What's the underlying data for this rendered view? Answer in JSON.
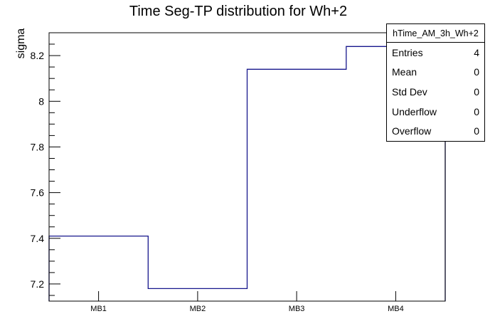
{
  "title": "Time Seg-TP distribution for Wh+2",
  "stats": {
    "header": "hTime_AM_3h_Wh+2",
    "rows": [
      {
        "label": "Entries",
        "value": "4"
      },
      {
        "label": "Mean",
        "value": "0"
      },
      {
        "label": "Std Dev",
        "value": "0"
      },
      {
        "label": "Underflow",
        "value": "0"
      },
      {
        "label": "Overflow",
        "value": "0"
      }
    ]
  },
  "chart_data": {
    "type": "bar",
    "style": "step-outline-histogram",
    "title": "Time Seg-TP distribution for Wh+2",
    "categories": [
      "MB1",
      "MB2",
      "MB3",
      "MB4"
    ],
    "values": [
      7.41,
      7.18,
      8.14,
      8.24
    ],
    "xlabel": "",
    "ylabel": "sigma",
    "ylim": [
      7.125,
      8.3
    ],
    "yticks_major": [
      7.2,
      7.4,
      7.6,
      7.8,
      8.0,
      8.2
    ],
    "ytick_labels": [
      "7.2",
      "7.4",
      "7.6",
      "7.8",
      "8",
      "8.2"
    ],
    "ytick_minor_step": 0.05,
    "grid": false,
    "legend": false,
    "line_color": "#17178c",
    "frame_color": "#000000",
    "background_color": "#ffffff"
  }
}
